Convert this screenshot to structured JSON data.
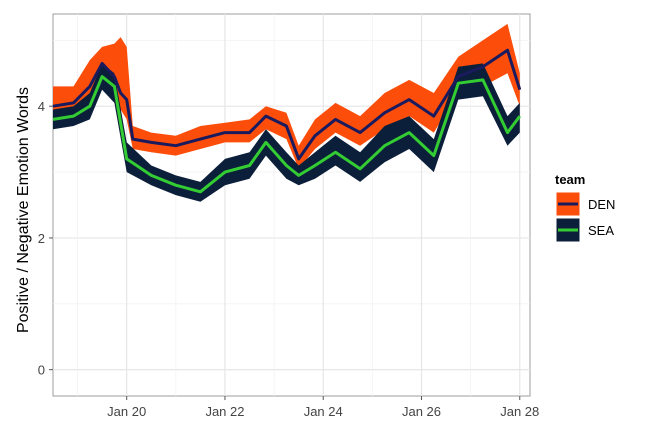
{
  "chart_data": {
    "type": "line",
    "title": "",
    "xlabel": "",
    "ylabel": "Positive / Negative Emotion Words",
    "xlim": [
      "2014-01-18T12:00",
      "2014-01-28T05:00"
    ],
    "ylim": [
      -0.4,
      5.4
    ],
    "x_ticks": [
      {
        "value": "2014-01-20",
        "label": "Jan 20"
      },
      {
        "value": "2014-01-22",
        "label": "Jan 22"
      },
      {
        "value": "2014-01-24",
        "label": "Jan 24"
      },
      {
        "value": "2014-01-26",
        "label": "Jan 26"
      },
      {
        "value": "2014-01-28",
        "label": "Jan 28"
      }
    ],
    "y_ticks": [
      0,
      2,
      4
    ],
    "grid": true,
    "legend": {
      "title": "team",
      "position": "right",
      "entries": [
        {
          "label": "DEN",
          "line_color": "#1a1a5e",
          "fill_color": "#fc4e0a"
        },
        {
          "label": "SEA",
          "line_color": "#33cc33",
          "fill_color": "#0b1f3a"
        }
      ]
    },
    "series": [
      {
        "name": "DEN",
        "line_color": "#1a1a5e",
        "band_color": "#fc4e0a",
        "points": [
          {
            "x": "2014-01-18T12:00",
            "y": 4.0,
            "lo": 3.85,
            "hi": 4.3
          },
          {
            "x": "2014-01-18T22:00",
            "y": 4.05,
            "lo": 3.9,
            "hi": 4.3
          },
          {
            "x": "2014-01-19T06:00",
            "y": 4.3,
            "lo": 4.05,
            "hi": 4.7
          },
          {
            "x": "2014-01-19T12:00",
            "y": 4.65,
            "lo": 4.4,
            "hi": 4.9
          },
          {
            "x": "2014-01-19T18:00",
            "y": 4.45,
            "lo": 4.2,
            "hi": 4.95
          },
          {
            "x": "2014-01-19T21:00",
            "y": 4.2,
            "lo": 3.95,
            "hi": 5.05
          },
          {
            "x": "2014-01-20T00:00",
            "y": 4.1,
            "lo": 3.8,
            "hi": 4.9
          },
          {
            "x": "2014-01-20T03:00",
            "y": 3.5,
            "lo": 3.35,
            "hi": 3.7
          },
          {
            "x": "2014-01-20T12:00",
            "y": 3.45,
            "lo": 3.3,
            "hi": 3.6
          },
          {
            "x": "2014-01-21T00:00",
            "y": 3.4,
            "lo": 3.25,
            "hi": 3.55
          },
          {
            "x": "2014-01-21T12:00",
            "y": 3.5,
            "lo": 3.35,
            "hi": 3.7
          },
          {
            "x": "2014-01-22T00:00",
            "y": 3.6,
            "lo": 3.45,
            "hi": 3.75
          },
          {
            "x": "2014-01-22T12:00",
            "y": 3.6,
            "lo": 3.45,
            "hi": 3.8
          },
          {
            "x": "2014-01-22T20:00",
            "y": 3.85,
            "lo": 3.65,
            "hi": 4.0
          },
          {
            "x": "2014-01-23T06:00",
            "y": 3.7,
            "lo": 3.5,
            "hi": 3.9
          },
          {
            "x": "2014-01-23T12:00",
            "y": 3.2,
            "lo": 3.05,
            "hi": 3.4
          },
          {
            "x": "2014-01-23T20:00",
            "y": 3.55,
            "lo": 3.35,
            "hi": 3.8
          },
          {
            "x": "2014-01-24T06:00",
            "y": 3.8,
            "lo": 3.6,
            "hi": 4.05
          },
          {
            "x": "2014-01-24T18:00",
            "y": 3.6,
            "lo": 3.4,
            "hi": 3.85
          },
          {
            "x": "2014-01-25T06:00",
            "y": 3.9,
            "lo": 3.65,
            "hi": 4.2
          },
          {
            "x": "2014-01-25T18:00",
            "y": 4.1,
            "lo": 3.85,
            "hi": 4.4
          },
          {
            "x": "2014-01-26T06:00",
            "y": 3.85,
            "lo": 3.6,
            "hi": 4.2
          },
          {
            "x": "2014-01-26T18:00",
            "y": 4.45,
            "lo": 4.2,
            "hi": 4.75
          },
          {
            "x": "2014-01-27T06:00",
            "y": 4.6,
            "lo": 4.3,
            "hi": 5.0
          },
          {
            "x": "2014-01-27T18:00",
            "y": 4.85,
            "lo": 4.5,
            "hi": 5.25
          },
          {
            "x": "2014-01-28T00:00",
            "y": 4.25,
            "lo": 4.0,
            "hi": 4.5
          }
        ]
      },
      {
        "name": "SEA",
        "line_color": "#33cc33",
        "band_color": "#0b1f3a",
        "points": [
          {
            "x": "2014-01-18T12:00",
            "y": 3.8,
            "lo": 3.65,
            "hi": 3.95
          },
          {
            "x": "2014-01-18T22:00",
            "y": 3.85,
            "lo": 3.7,
            "hi": 4.0
          },
          {
            "x": "2014-01-19T06:00",
            "y": 4.0,
            "lo": 3.8,
            "hi": 4.2
          },
          {
            "x": "2014-01-19T12:00",
            "y": 4.45,
            "lo": 4.25,
            "hi": 4.65
          },
          {
            "x": "2014-01-19T18:00",
            "y": 4.3,
            "lo": 4.05,
            "hi": 4.5
          },
          {
            "x": "2014-01-20T00:00",
            "y": 3.2,
            "lo": 3.0,
            "hi": 3.45
          },
          {
            "x": "2014-01-20T12:00",
            "y": 2.95,
            "lo": 2.8,
            "hi": 3.1
          },
          {
            "x": "2014-01-21T00:00",
            "y": 2.8,
            "lo": 2.65,
            "hi": 2.95
          },
          {
            "x": "2014-01-21T12:00",
            "y": 2.7,
            "lo": 2.55,
            "hi": 2.85
          },
          {
            "x": "2014-01-22T00:00",
            "y": 3.0,
            "lo": 2.8,
            "hi": 3.2
          },
          {
            "x": "2014-01-22T12:00",
            "y": 3.1,
            "lo": 2.9,
            "hi": 3.3
          },
          {
            "x": "2014-01-22T20:00",
            "y": 3.45,
            "lo": 3.25,
            "hi": 3.65
          },
          {
            "x": "2014-01-23T06:00",
            "y": 3.1,
            "lo": 2.9,
            "hi": 3.3
          },
          {
            "x": "2014-01-23T12:00",
            "y": 2.95,
            "lo": 2.8,
            "hi": 3.1
          },
          {
            "x": "2014-01-23T20:00",
            "y": 3.1,
            "lo": 2.9,
            "hi": 3.3
          },
          {
            "x": "2014-01-24T06:00",
            "y": 3.3,
            "lo": 3.1,
            "hi": 3.55
          },
          {
            "x": "2014-01-24T18:00",
            "y": 3.05,
            "lo": 2.85,
            "hi": 3.3
          },
          {
            "x": "2014-01-25T06:00",
            "y": 3.4,
            "lo": 3.15,
            "hi": 3.7
          },
          {
            "x": "2014-01-25T18:00",
            "y": 3.6,
            "lo": 3.35,
            "hi": 3.85
          },
          {
            "x": "2014-01-26T06:00",
            "y": 3.25,
            "lo": 3.0,
            "hi": 3.5
          },
          {
            "x": "2014-01-26T18:00",
            "y": 4.35,
            "lo": 4.1,
            "hi": 4.6
          },
          {
            "x": "2014-01-27T06:00",
            "y": 4.4,
            "lo": 4.15,
            "hi": 4.65
          },
          {
            "x": "2014-01-27T18:00",
            "y": 3.6,
            "lo": 3.4,
            "hi": 3.85
          },
          {
            "x": "2014-01-28T00:00",
            "y": 3.85,
            "lo": 3.6,
            "hi": 4.05
          }
        ]
      }
    ]
  }
}
